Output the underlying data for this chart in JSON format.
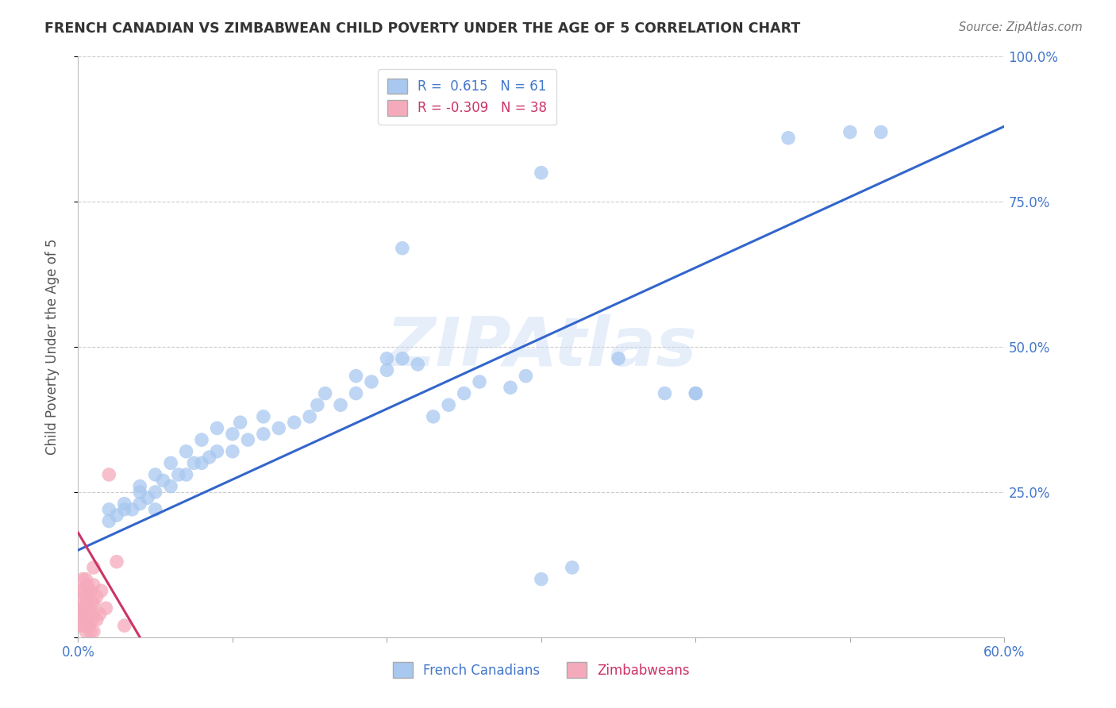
{
  "title": "FRENCH CANADIAN VS ZIMBABWEAN CHILD POVERTY UNDER THE AGE OF 5 CORRELATION CHART",
  "source": "Source: ZipAtlas.com",
  "ylabel": "Child Poverty Under the Age of 5",
  "xlim": [
    0.0,
    0.6
  ],
  "ylim": [
    0.0,
    1.0
  ],
  "blue_R": 0.615,
  "blue_N": 61,
  "pink_R": -0.309,
  "pink_N": 38,
  "blue_color": "#a8c8f0",
  "blue_line_color": "#3366cc",
  "pink_color": "#f5aabb",
  "pink_line_color": "#cc3366",
  "watermark": "ZIPAtlas",
  "blue_line_x": [
    0.0,
    0.6
  ],
  "blue_line_y": [
    0.15,
    0.88
  ],
  "pink_line_x": [
    0.0,
    0.04
  ],
  "pink_line_y": [
    0.18,
    0.0
  ],
  "fc_x": [
    0.02,
    0.02,
    0.025,
    0.03,
    0.03,
    0.035,
    0.04,
    0.04,
    0.04,
    0.045,
    0.05,
    0.05,
    0.05,
    0.055,
    0.06,
    0.06,
    0.065,
    0.07,
    0.07,
    0.075,
    0.08,
    0.08,
    0.085,
    0.09,
    0.09,
    0.1,
    0.1,
    0.105,
    0.11,
    0.12,
    0.12,
    0.13,
    0.14,
    0.15,
    0.155,
    0.16,
    0.17,
    0.18,
    0.18,
    0.19,
    0.2,
    0.2,
    0.21,
    0.22,
    0.23,
    0.24,
    0.25,
    0.26,
    0.28,
    0.29,
    0.3,
    0.32,
    0.35,
    0.38,
    0.4,
    0.21,
    0.3,
    0.4,
    0.46,
    0.5,
    0.52
  ],
  "fc_y": [
    0.2,
    0.22,
    0.21,
    0.22,
    0.23,
    0.22,
    0.23,
    0.25,
    0.26,
    0.24,
    0.22,
    0.25,
    0.28,
    0.27,
    0.26,
    0.3,
    0.28,
    0.28,
    0.32,
    0.3,
    0.3,
    0.34,
    0.31,
    0.32,
    0.36,
    0.32,
    0.35,
    0.37,
    0.34,
    0.35,
    0.38,
    0.36,
    0.37,
    0.38,
    0.4,
    0.42,
    0.4,
    0.42,
    0.45,
    0.44,
    0.46,
    0.48,
    0.48,
    0.47,
    0.38,
    0.4,
    0.42,
    0.44,
    0.43,
    0.45,
    0.1,
    0.12,
    0.48,
    0.42,
    0.42,
    0.67,
    0.8,
    0.42,
    0.86,
    0.87,
    0.87
  ],
  "zw_x": [
    0.001,
    0.001,
    0.002,
    0.002,
    0.003,
    0.003,
    0.003,
    0.004,
    0.004,
    0.004,
    0.005,
    0.005,
    0.005,
    0.005,
    0.006,
    0.006,
    0.006,
    0.007,
    0.007,
    0.007,
    0.008,
    0.008,
    0.008,
    0.009,
    0.009,
    0.01,
    0.01,
    0.01,
    0.01,
    0.01,
    0.012,
    0.012,
    0.014,
    0.015,
    0.018,
    0.02,
    0.025,
    0.03
  ],
  "zw_y": [
    0.02,
    0.05,
    0.03,
    0.08,
    0.04,
    0.06,
    0.1,
    0.02,
    0.05,
    0.08,
    0.01,
    0.04,
    0.07,
    0.1,
    0.03,
    0.06,
    0.09,
    0.02,
    0.05,
    0.08,
    0.01,
    0.04,
    0.08,
    0.03,
    0.06,
    0.01,
    0.04,
    0.06,
    0.09,
    0.12,
    0.03,
    0.07,
    0.04,
    0.08,
    0.05,
    0.28,
    0.13,
    0.02
  ]
}
